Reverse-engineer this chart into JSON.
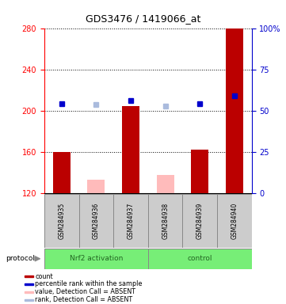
{
  "title": "GDS3476 / 1419066_at",
  "samples": [
    "GSM284935",
    "GSM284936",
    "GSM284937",
    "GSM284938",
    "GSM284939",
    "GSM284940"
  ],
  "bar_values": [
    160,
    null,
    205,
    null,
    162,
    280
  ],
  "bar_absent_values": [
    null,
    133,
    null,
    138,
    null,
    null
  ],
  "bar_color_present": "#bb0000",
  "bar_color_absent": "#ffbbbb",
  "percentile_present": [
    207,
    null,
    210,
    null,
    207,
    215
  ],
  "percentile_absent": [
    null,
    206,
    null,
    205,
    null,
    null
  ],
  "percentile_color_present": "#0000cc",
  "percentile_color_absent": "#aabbdd",
  "ylim_left": [
    120,
    280
  ],
  "yticks_left": [
    120,
    160,
    200,
    240,
    280
  ],
  "yticks_right": [
    0,
    25,
    50,
    75,
    100
  ],
  "ytick_labels_right": [
    "0",
    "25",
    "50",
    "75",
    "100%"
  ],
  "group_ranges": [
    [
      0,
      2
    ],
    [
      3,
      5
    ]
  ],
  "group_labels": [
    "Nrf2 activation",
    "control"
  ],
  "group_color": "#77ee77",
  "group_text_color": "#226622",
  "legend": [
    {
      "label": "count",
      "color": "#bb0000"
    },
    {
      "label": "percentile rank within the sample",
      "color": "#0000cc"
    },
    {
      "label": "value, Detection Call = ABSENT",
      "color": "#ffbbbb"
    },
    {
      "label": "rank, Detection Call = ABSENT",
      "color": "#aabbdd"
    }
  ]
}
